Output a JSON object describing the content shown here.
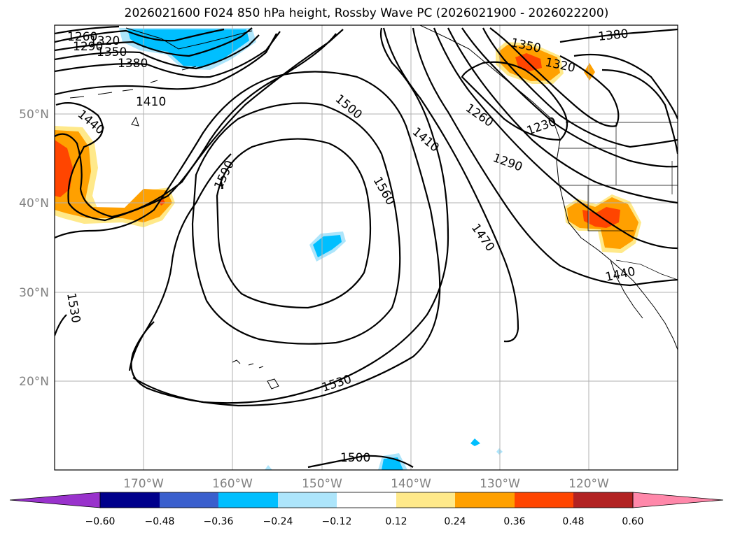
{
  "title": "2026021600 F024 850 hPa height, Rossby Wave PC (2026021900 - 2026022200)",
  "lat_labels": [
    "50°N",
    "40°N",
    "30°N",
    "20°N"
  ],
  "lon_labels": [
    "170°W",
    "160°W",
    "150°W",
    "140°W",
    "130°W",
    "120°W"
  ],
  "contour_labels": [
    "1260",
    "1290",
    "1320",
    "1350",
    "1380",
    "1410",
    "1440",
    "1590",
    "1500",
    "1560",
    "1410",
    "1470",
    "1530",
    "1350",
    "1320",
    "1380",
    "1260",
    "1290",
    "1230",
    "1440",
    "1530",
    "1500"
  ],
  "colorbar": {
    "ticks": [
      "−0.60",
      "−0.48",
      "−0.36",
      "−0.24",
      "−0.12",
      "0.12",
      "0.24",
      "0.36",
      "0.48",
      "0.60"
    ],
    "colors": [
      "#9932cc",
      "#00008b",
      "#3a5fcd",
      "#00bfff",
      "#ade5fb",
      "#ffffff",
      "#ffe98a",
      "#ffa000",
      "#ff4500",
      "#b22222",
      "#ff88aa"
    ]
  },
  "colors": {
    "positive_fill": "#ffa000",
    "positive_strong": "#ff4500",
    "positive_weak": "#ffe98a",
    "negative_fill": "#00bfff",
    "negative_weak": "#ade5fb",
    "gridline": "#b0b0b0"
  }
}
